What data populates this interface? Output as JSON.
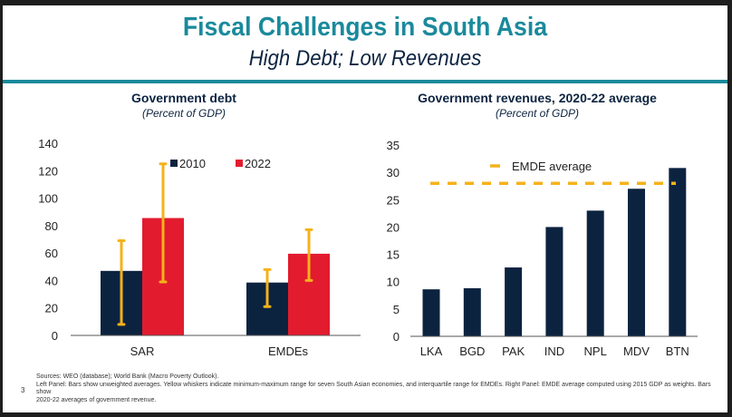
{
  "slide": {
    "title": "Fiscal Challenges in South Asia",
    "subtitle": "High Debt; Low Revenues",
    "page_number": "3",
    "sources": "Sources: WEO (database); World Bank (Macro Poverty Outlook).",
    "note_line1": "Left Panel: Bars show unweighted averages. Yellow whiskers indicate minimum-maximum range for seven South Asian economies, and interquartile range for EMDEs. Right Panel: EMDE average computed using 2015 GDP as weights. Bars show",
    "note_line2": "2020-22 averages of government revenue."
  },
  "colors": {
    "navy": "#0c2340",
    "red": "#e31b2f",
    "yellow": "#f5b21a",
    "teal": "#1a8a9c"
  },
  "chart_data": [
    {
      "type": "bar",
      "title": "Government debt",
      "subtitle": "(Percent of GDP)",
      "categories": [
        "SAR",
        "EMDEs"
      ],
      "series": [
        {
          "name": "2010",
          "values": [
            47,
            38.5
          ],
          "whisker_low": [
            8,
            21
          ],
          "whisker_high": [
            69,
            48
          ]
        },
        {
          "name": "2022",
          "values": [
            85.5,
            59.5
          ],
          "whisker_low": [
            39,
            40
          ],
          "whisker_high": [
            125,
            77
          ]
        }
      ],
      "ylim": [
        0,
        140
      ],
      "yticks": [
        "0",
        "20",
        "40",
        "60",
        "80",
        "100",
        "120",
        "140"
      ],
      "legend": "top-center",
      "grid": false
    },
    {
      "type": "bar",
      "title": "Government revenues, 2020-22 average",
      "subtitle": "(Percent of GDP)",
      "categories": [
        "LKA",
        "BGD",
        "PAK",
        "IND",
        "NPL",
        "MDV",
        "BTN"
      ],
      "values": [
        8.6,
        8.8,
        12.6,
        20,
        23,
        27,
        30.8
      ],
      "reference_line": {
        "name": "EMDE average",
        "value": 28
      },
      "ylim": [
        0,
        35
      ],
      "yticks": [
        "0",
        "5",
        "10",
        "15",
        "20",
        "25",
        "30",
        "35"
      ],
      "legend": "top-center",
      "grid": false
    }
  ]
}
